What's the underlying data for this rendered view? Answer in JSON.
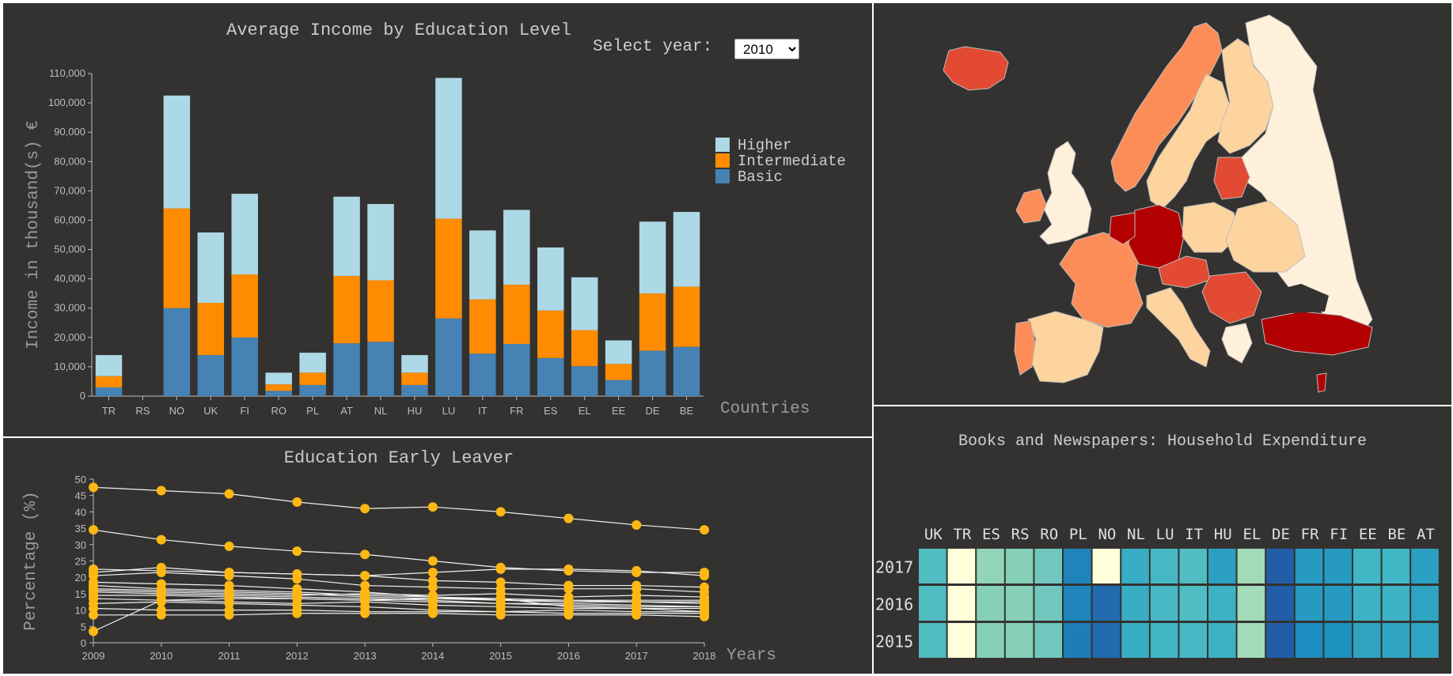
{
  "controls": {
    "year_label": "Select year:",
    "year_selected": "2010"
  },
  "chart_data": [
    {
      "type": "bar",
      "stacked": true,
      "title": "Average Income by Education Level",
      "xlabel": "Countries",
      "ylabel": "Income in thousand(s) €",
      "ylim": [
        0,
        110000
      ],
      "yticks": [
        "0",
        "10,000",
        "20,000",
        "30,000",
        "40,000",
        "50,000",
        "60,000",
        "70,000",
        "80,000",
        "90,000",
        "100,000",
        "110,000"
      ],
      "legend_position": "right",
      "categories": [
        "TR",
        "RS",
        "NO",
        "UK",
        "FI",
        "RO",
        "PL",
        "AT",
        "NL",
        "HU",
        "LU",
        "IT",
        "FR",
        "ES",
        "EL",
        "EE",
        "DE",
        "BE"
      ],
      "series": [
        {
          "name": "Basic",
          "color": "#4682b4",
          "values": [
            3000,
            0,
            30000,
            14000,
            20000,
            1800,
            3800,
            18000,
            18500,
            3800,
            26500,
            14500,
            17800,
            13000,
            10200,
            5500,
            15500,
            16800
          ]
        },
        {
          "name": "Intermediate",
          "color": "#ff8c00",
          "values": [
            3800,
            0,
            34000,
            17800,
            21500,
            2200,
            4200,
            23000,
            21000,
            4200,
            34000,
            18500,
            20200,
            16200,
            12300,
            5500,
            19500,
            20500
          ]
        },
        {
          "name": "Higher",
          "color": "#add8e6",
          "values": [
            7200,
            0,
            38500,
            24000,
            27500,
            4000,
            6800,
            27000,
            26000,
            6000,
            48000,
            23500,
            25500,
            21500,
            18000,
            8000,
            24500,
            25500
          ]
        }
      ],
      "legend": [
        "Higher",
        "Intermediate",
        "Basic"
      ]
    },
    {
      "type": "line",
      "title": "Education Early Leaver",
      "xlabel": "Years",
      "ylabel": "Percentage (%)",
      "ylim": [
        0,
        50
      ],
      "yticks": [
        "0",
        "5",
        "10",
        "15",
        "20",
        "25",
        "30",
        "35",
        "40",
        "45",
        "50"
      ],
      "x": [
        2009,
        2010,
        2011,
        2012,
        2013,
        2014,
        2015,
        2016,
        2017,
        2018
      ],
      "series": [
        {
          "values": [
            47.5,
            46.5,
            45.5,
            43.0,
            41.0,
            41.5,
            40.0,
            38.0,
            36.0,
            34.5
          ]
        },
        {
          "values": [
            34.5,
            31.5,
            29.5,
            28.0,
            27.0,
            25.0,
            23.0,
            22.0,
            21.5,
            21.5
          ]
        },
        {
          "values": [
            22.5,
            22.0,
            21.5,
            21.0,
            20.5,
            19.0,
            18.5,
            17.5,
            17.5,
            17.0
          ]
        },
        {
          "values": [
            21.5,
            23.0,
            21.5,
            21.0,
            20.5,
            21.5,
            22.5,
            22.5,
            22.0,
            20.5
          ]
        },
        {
          "values": [
            20.5,
            21.5,
            20.5,
            19.5,
            17.5,
            17.0,
            16.5,
            16.5,
            16.5,
            15.5
          ]
        },
        {
          "values": [
            18.5,
            18.0,
            17.5,
            16.5,
            15.5,
            14.0,
            13.0,
            13.0,
            12.5,
            12.5
          ]
        },
        {
          "values": [
            17.5,
            16.5,
            16.0,
            15.5,
            14.5,
            14.0,
            13.5,
            13.0,
            13.0,
            13.0
          ]
        },
        {
          "values": [
            16.5,
            16.0,
            15.5,
            15.0,
            14.0,
            13.5,
            13.0,
            12.5,
            12.5,
            12.0
          ]
        },
        {
          "values": [
            15.5,
            15.0,
            14.5,
            14.0,
            13.5,
            13.0,
            12.0,
            12.0,
            11.5,
            11.0
          ]
        },
        {
          "values": [
            14.5,
            14.5,
            14.0,
            13.5,
            13.0,
            12.5,
            12.0,
            11.5,
            11.0,
            11.0
          ]
        },
        {
          "values": [
            13.5,
            13.0,
            12.5,
            12.0,
            12.5,
            11.5,
            11.0,
            10.5,
            10.5,
            10.5
          ]
        },
        {
          "values": [
            12.0,
            12.5,
            12.0,
            11.5,
            11.0,
            10.0,
            9.5,
            10.0,
            9.5,
            9.5
          ]
        },
        {
          "values": [
            10.5,
            10.0,
            10.0,
            10.0,
            9.5,
            9.5,
            9.5,
            9.0,
            9.0,
            9.0
          ]
        },
        {
          "values": [
            8.5,
            8.5,
            8.5,
            9.0,
            9.0,
            9.0,
            8.5,
            8.5,
            8.5,
            8.0
          ]
        },
        {
          "values": [
            3.5,
            13.0,
            13.5,
            13.5,
            13.0,
            13.5,
            13.5,
            11.0,
            10.5,
            9.5
          ]
        },
        {
          "values": [
            16.0,
            15.5,
            15.0,
            14.5,
            15.0,
            14.5,
            15.0,
            14.0,
            14.5,
            14.0
          ]
        }
      ]
    },
    {
      "type": "heatmap",
      "title": "Books and Newspapers: Household Expenditure",
      "columns": [
        "UK",
        "TR",
        "ES",
        "RS",
        "RO",
        "PL",
        "NO",
        "NL",
        "LU",
        "IT",
        "HU",
        "EL",
        "DE",
        "FR",
        "FI",
        "EE",
        "BE",
        "AT"
      ],
      "rows": [
        "2017",
        "2016",
        "2015"
      ],
      "color_range": [
        "#ffffd9",
        "#225ea8"
      ],
      "values": [
        [
          0.55,
          0.0,
          0.35,
          0.38,
          0.45,
          0.85,
          0.0,
          0.65,
          0.58,
          0.55,
          0.72,
          0.3,
          1.0,
          0.75,
          0.75,
          0.6,
          0.6,
          0.72
        ],
        [
          0.55,
          0.0,
          0.38,
          0.38,
          0.45,
          0.85,
          0.95,
          0.65,
          0.58,
          0.55,
          0.62,
          0.3,
          1.0,
          0.75,
          0.75,
          0.62,
          0.62,
          0.7
        ],
        [
          0.55,
          0.0,
          0.38,
          0.38,
          0.45,
          0.88,
          0.95,
          0.65,
          0.6,
          0.58,
          0.62,
          0.3,
          1.0,
          0.82,
          0.8,
          0.7,
          0.7,
          0.7
        ]
      ]
    }
  ],
  "map": {
    "fill_scale": [
      "#fff0dc",
      "#fdd49e",
      "#fc8d59",
      "#e34a33",
      "#b30000"
    ],
    "border_color": "#bcbcbc"
  }
}
